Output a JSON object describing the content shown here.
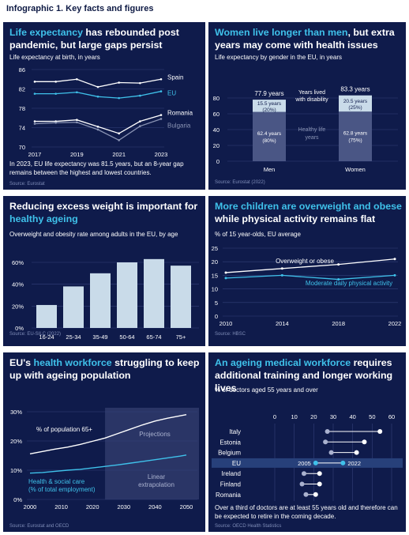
{
  "header": {
    "title": "Infographic 1. Key facts and figures"
  },
  "colors": {
    "background": "#0f1b4b",
    "accent": "#3fc1ea",
    "bar": "#c9dbe9",
    "grey": "#8a94b4"
  },
  "panel1": {
    "title_hl": "Life expectancy",
    "title_rest": " has rebounded post pandemic, but large gaps persist",
    "subtitle": "Life expectancy at birth, in years",
    "note": "In 2023, EU life expectancy was 81.5 years, but an 8-year gap remains between the highest and lowest countries.",
    "source": "Source: Eurostat"
  },
  "panel2": {
    "title_hl": "Women live longer than men",
    "title_rest": ", but extra years may come with health issues",
    "subtitle": "Life expectancy by gender in the EU, in years",
    "source": "Source: Eurostat (2022)",
    "label_disability": "Years lived with disability",
    "label_healthy": "Healthy life years"
  },
  "panel3": {
    "title_plain": "Reducing excess weight is important for ",
    "title_hl": "healthy ageing",
    "subtitle": "Overweight and obesity rate among adults in the EU, by age",
    "source": "Source: EU-SILC (2022)"
  },
  "panel4": {
    "title_hl": "More children are overweight and obese",
    "title_rest": " while physical activity remains flat",
    "subtitle": "% of 15 year-olds, EU average",
    "source": "Source: HBSC"
  },
  "panel5": {
    "title_plain1": "EU's ",
    "title_hl": "health workforce",
    "title_rest": " struggling to keep up with ageing population",
    "source": "Source: Eurostat and OECD",
    "label_projections": "Projections",
    "label_linear": "Linear extrapolation"
  },
  "panel6": {
    "title_hl": "An ageing medical workforce",
    "title_rest": " requires additional training and longer working lives",
    "subtitle": "% of doctors aged 55 years and over",
    "note": "Over a third of doctors are at least 55 years old and therefore can be expected to retire in the coming decade.",
    "source": "Source: OECD Health Statistics",
    "label_2005": "2005",
    "label_2022": "2022"
  },
  "chart_data": [
    {
      "type": "line",
      "x": [
        2017,
        2018,
        2019,
        2020,
        2021,
        2022,
        2023
      ],
      "xticks": [
        2017,
        2019,
        2021,
        2023
      ],
      "ylim": [
        70,
        86
      ],
      "yticks": [
        70,
        74,
        78,
        82,
        86
      ],
      "series": [
        {
          "name": "Spain",
          "values": [
            83.5,
            83.5,
            84.0,
            82.4,
            83.3,
            83.2,
            84.0
          ],
          "color": "#ffffff"
        },
        {
          "name": "EU",
          "values": [
            81.0,
            81.0,
            81.3,
            80.4,
            80.1,
            80.6,
            81.5
          ],
          "color": "#3fc1ea"
        },
        {
          "name": "Romania",
          "values": [
            75.3,
            75.3,
            75.6,
            74.2,
            72.8,
            75.3,
            76.6
          ],
          "color": "#ffffff"
        },
        {
          "name": "Bulgaria",
          "values": [
            74.8,
            75.0,
            75.1,
            73.6,
            71.4,
            74.3,
            75.8
          ],
          "color": "#8a94b4"
        }
      ]
    },
    {
      "type": "bar",
      "categories": [
        "Men",
        "Women"
      ],
      "ylim": [
        0,
        100
      ],
      "yticks": [
        0,
        20,
        40,
        60,
        80
      ],
      "totals": [
        77.9,
        83.3
      ],
      "total_labels": [
        "77.9 years",
        "83.3 years"
      ],
      "series": [
        {
          "name": "Healthy life years",
          "values": [
            62.4,
            62.8
          ],
          "labels": [
            "62.4 years (80%)",
            "62.8 years (75%)"
          ]
        },
        {
          "name": "Years lived with disability",
          "values": [
            15.5,
            20.5
          ],
          "labels": [
            "15.5 years (20%)",
            "20.5 years (25%)"
          ]
        }
      ]
    },
    {
      "type": "bar",
      "categories": [
        "16-24",
        "25-34",
        "35-49",
        "50-64",
        "65-74",
        "75+"
      ],
      "values": [
        21,
        38,
        50,
        60,
        63,
        57
      ],
      "ylim": [
        0,
        60
      ],
      "yticks": [
        "0%",
        "20%",
        "40%",
        "60%"
      ]
    },
    {
      "type": "line",
      "x": [
        2010,
        2014,
        2018,
        2022
      ],
      "ylim": [
        0,
        25
      ],
      "yticks": [
        0,
        5,
        10,
        15,
        20,
        25
      ],
      "series": [
        {
          "name": "Overweight or obese",
          "values": [
            16,
            17.5,
            19,
            21
          ],
          "color": "#ffffff"
        },
        {
          "name": "Moderate daily physical activity",
          "values": [
            14,
            15,
            13.5,
            15
          ],
          "color": "#3fc1ea"
        }
      ]
    },
    {
      "type": "line",
      "xticks": [
        2000,
        2010,
        2020,
        2030,
        2040,
        2050
      ],
      "ylim": [
        0,
        30
      ],
      "yticks": [
        "0%",
        "10%",
        "20%",
        "30%"
      ],
      "projection_start": 2024,
      "series": [
        {
          "name": "% of population 65+",
          "x": [
            2000,
            2004,
            2008,
            2012,
            2016,
            2020,
            2024,
            2028,
            2032,
            2036,
            2040,
            2044,
            2048,
            2050
          ],
          "values": [
            15.6,
            16.4,
            17.2,
            17.9,
            18.8,
            19.9,
            21.0,
            22.5,
            24.0,
            25.5,
            26.8,
            27.8,
            28.6,
            29.0
          ],
          "color": "#ffffff"
        },
        {
          "name": "Health & social care (% of total employment)",
          "x": [
            2000,
            2004,
            2008,
            2012,
            2016,
            2020,
            2024,
            2028,
            2032,
            2036,
            2040,
            2044,
            2048,
            2050
          ],
          "values": [
            9.0,
            9.2,
            9.6,
            10.0,
            10.3,
            10.8,
            11.3,
            11.8,
            12.4,
            13.0,
            13.6,
            14.2,
            14.8,
            15.2
          ],
          "color": "#3fc1ea"
        }
      ]
    },
    {
      "type": "scatter",
      "xlim": [
        0,
        60
      ],
      "xticks": [
        0,
        10,
        20,
        30,
        40,
        50,
        60
      ],
      "categories": [
        "Italy",
        "Estonia",
        "Belgium",
        "EU",
        "Ireland",
        "Finland",
        "Romania"
      ],
      "series": [
        {
          "name": "2005",
          "values": [
            27,
            26,
            29,
            21,
            15,
            14,
            16
          ]
        },
        {
          "name": "2022",
          "values": [
            54,
            46,
            42,
            35,
            23,
            23,
            21
          ]
        }
      ]
    }
  ]
}
